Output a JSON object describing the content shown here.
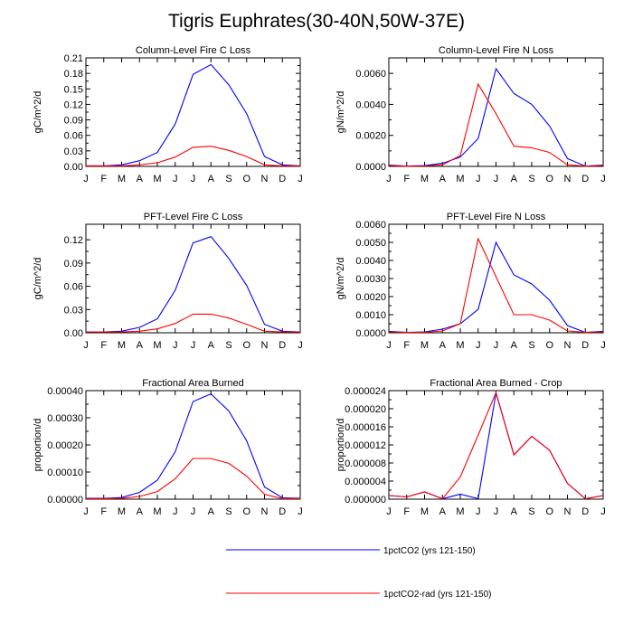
{
  "title": "Tigris Euphrates(30-40N,50W-37E)",
  "legend": {
    "position": "bottom",
    "entries": [
      {
        "label": "1pctCO2 (yrs 121-150)",
        "color": "#0000ff"
      },
      {
        "label": "1pctCO2-rad (yrs 121-150)",
        "color": "#ff0000"
      }
    ]
  },
  "chart_data": [
    {
      "type": "line",
      "title": "Column-Level Fire C Loss",
      "ylabel": "gC/m^2/d",
      "categories": [
        "J",
        "F",
        "M",
        "A",
        "M",
        "J",
        "J",
        "A",
        "S",
        "O",
        "N",
        "D",
        "J"
      ],
      "ylim": [
        0,
        0.21
      ],
      "yticks": [
        "0.00",
        "0.03",
        "0.06",
        "0.09",
        "0.12",
        "0.15",
        "0.18",
        "0.21"
      ],
      "series": [
        {
          "name": "1pctCO2 (yrs 121-150)",
          "color": "#0000ff",
          "values": [
            0.001,
            0.001,
            0.003,
            0.011,
            0.027,
            0.082,
            0.178,
            0.197,
            0.158,
            0.102,
            0.019,
            0.003,
            0.001
          ]
        },
        {
          "name": "1pctCO2-rad (yrs 121-150)",
          "color": "#ff0000",
          "values": [
            0.001,
            0.001,
            0.001,
            0.003,
            0.007,
            0.018,
            0.037,
            0.039,
            0.031,
            0.019,
            0.003,
            0.001,
            0.001
          ]
        }
      ]
    },
    {
      "type": "line",
      "title": "Column-Level Fire N Loss",
      "ylabel": "gN/m^2/d",
      "categories": [
        "J",
        "F",
        "M",
        "A",
        "M",
        "J",
        "J",
        "A",
        "S",
        "O",
        "N",
        "D",
        "J"
      ],
      "ylim": [
        0,
        0.007
      ],
      "yticks": [
        "0.0000",
        "0.0020",
        "0.0040",
        "0.0060"
      ],
      "series": [
        {
          "name": "1pctCO2 (yrs 121-150)",
          "color": "#0000ff",
          "values": [
            8e-05,
            2e-05,
            5e-05,
            0.0002,
            0.0006,
            0.0018,
            0.0063,
            0.0047,
            0.004,
            0.0026,
            0.0005,
            2e-05,
            8e-05
          ]
        },
        {
          "name": "1pctCO2-rad (yrs 121-150)",
          "color": "#ff0000",
          "values": [
            5e-05,
            2e-05,
            3e-05,
            0.0001,
            0.0007,
            0.0053,
            0.0034,
            0.0013,
            0.0012,
            0.0009,
            0.0001,
            2e-05,
            5e-05
          ]
        }
      ]
    },
    {
      "type": "line",
      "title": "PFT-Level Fire C Loss",
      "ylabel": "gC/m^2/d",
      "categories": [
        "J",
        "F",
        "M",
        "A",
        "M",
        "J",
        "J",
        "A",
        "S",
        "O",
        "N",
        "D",
        "J"
      ],
      "ylim": [
        0,
        0.14
      ],
      "yticks": [
        "0.00",
        "0.03",
        "0.06",
        "0.09",
        "0.12"
      ],
      "series": [
        {
          "name": "1pctCO2 (yrs 121-150)",
          "color": "#0000ff",
          "values": [
            0.001,
            0.001,
            0.002,
            0.007,
            0.018,
            0.055,
            0.116,
            0.124,
            0.096,
            0.061,
            0.011,
            0.002,
            0.001
          ]
        },
        {
          "name": "1pctCO2-rad (yrs 121-150)",
          "color": "#ff0000",
          "values": [
            0.001,
            0.001,
            0.001,
            0.002,
            0.005,
            0.012,
            0.024,
            0.024,
            0.019,
            0.011,
            0.002,
            0.001,
            0.001
          ]
        }
      ]
    },
    {
      "type": "line",
      "title": "PFT-Level Fire N Loss",
      "ylabel": "gN/m^2/d",
      "categories": [
        "J",
        "F",
        "M",
        "A",
        "M",
        "J",
        "J",
        "A",
        "S",
        "O",
        "N",
        "D",
        "J"
      ],
      "ylim": [
        0,
        0.006
      ],
      "yticks": [
        "0.0000",
        "0.0010",
        "0.0020",
        "0.0030",
        "0.0040",
        "0.0050",
        "0.0060"
      ],
      "series": [
        {
          "name": "1pctCO2 (yrs 121-150)",
          "color": "#0000ff",
          "values": [
            8e-05,
            2e-05,
            5e-05,
            0.0002,
            0.0005,
            0.0013,
            0.005,
            0.0032,
            0.0027,
            0.0018,
            0.0004,
            2e-05,
            8e-05
          ]
        },
        {
          "name": "1pctCO2-rad (yrs 121-150)",
          "color": "#ff0000",
          "values": [
            5e-05,
            2e-05,
            3e-05,
            0.0001,
            0.0005,
            0.0052,
            0.0031,
            0.001,
            0.001,
            0.0007,
            0.0001,
            2e-05,
            5e-05
          ]
        }
      ]
    },
    {
      "type": "line",
      "title": "Fractional Area Burned",
      "ylabel": "proportion/d",
      "categories": [
        "J",
        "F",
        "M",
        "A",
        "M",
        "J",
        "J",
        "A",
        "S",
        "O",
        "N",
        "D",
        "J"
      ],
      "ylim": [
        0,
        0.0004
      ],
      "yticks": [
        "0.00000",
        "0.00010",
        "0.00020",
        "0.00030",
        "0.00040"
      ],
      "series": [
        {
          "name": "1pctCO2 (yrs 121-150)",
          "color": "#0000ff",
          "values": [
            3e-06,
            3e-06,
            6e-06,
            2.5e-05,
            7e-05,
            0.000175,
            0.00036,
            0.000388,
            0.000325,
            0.000215,
            4.5e-05,
            5e-06,
            3e-06
          ]
        },
        {
          "name": "1pctCO2-rad (yrs 121-150)",
          "color": "#ff0000",
          "values": [
            2e-06,
            2e-06,
            3e-06,
            1e-05,
            2.8e-05,
            7.5e-05,
            0.00015,
            0.00015,
            0.000132,
            8.5e-05,
            1.8e-05,
            2e-06,
            2e-06
          ]
        }
      ]
    },
    {
      "type": "line",
      "title": "Fractional Area Burned - Crop",
      "ylabel": "proportion/d",
      "categories": [
        "J",
        "F",
        "M",
        "A",
        "M",
        "J",
        "J",
        "A",
        "S",
        "O",
        "N",
        "D",
        "J"
      ],
      "ylim": [
        0,
        2.4e-05
      ],
      "yticks": [
        "0.000000",
        "0.000004",
        "0.000008",
        "0.000012",
        "0.000016",
        "0.000020",
        "0.000024"
      ],
      "series": [
        {
          "name": "1pctCO2 (yrs 121-150)",
          "color": "#0000ff",
          "values": [
            8e-07,
            5e-07,
            1.6e-06,
            1e-07,
            1.1e-06,
            1e-07,
            2.35e-05,
            9.8e-06,
            1.39e-05,
            1.08e-05,
            3.5e-06,
            1e-07,
            8e-07
          ]
        },
        {
          "name": "1pctCO2-rad (yrs 121-150)",
          "color": "#ff0000",
          "values": [
            8e-07,
            5e-07,
            1.6e-06,
            1e-07,
            4.9e-06,
            1.42e-05,
            2.36e-05,
            9.8e-06,
            1.39e-05,
            1.08e-05,
            3.5e-06,
            1e-07,
            8e-07
          ]
        }
      ]
    }
  ]
}
